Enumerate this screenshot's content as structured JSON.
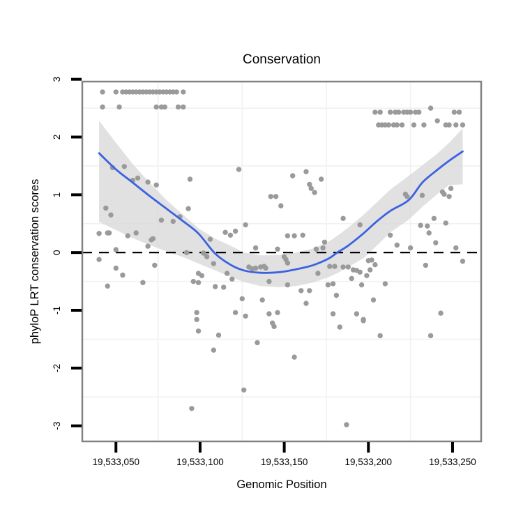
{
  "title": "Conservation",
  "axes": {
    "x_label": "Genomic Position",
    "y_label": "phyloP LRT conservation scores",
    "x_tick_labels": [
      "19,533,050",
      "19,533,100",
      "19,533,150",
      "19,533,200",
      "19,533,250"
    ],
    "y_tick_labels": [
      "3",
      "2",
      "1",
      "0",
      "-1",
      "-2",
      "-3"
    ]
  },
  "colors": {
    "background": "#ffffff",
    "point": "#9a9a9a",
    "smooth_line": "#3b62e0",
    "ribbon": "#d9d9d9",
    "zero_line": "#000000",
    "panel_border": "#828282",
    "tick": "#000000",
    "minor_grid": "#f1f1f1"
  },
  "chart_data": {
    "type": "scatter",
    "title": "Conservation",
    "xlabel": "Genomic Position",
    "ylabel": "phyloP LRT conservation scores",
    "xlim": [
      19533030,
      19533267
    ],
    "ylim": [
      -3.27,
      2.96
    ],
    "x_ticks": [
      19533050,
      19533100,
      19533150,
      19533200,
      19533250
    ],
    "y_ticks": [
      3,
      2,
      1,
      0,
      -1,
      -2,
      -3
    ],
    "minor_gridlines_x": [
      19533075,
      19533125,
      19533175,
      19533225
    ],
    "minor_gridlines_y": [
      2.5,
      1.5,
      0.5,
      -0.5,
      -1.5,
      -2.5
    ],
    "zero_line": 0,
    "legend": "none",
    "grid": "minor-only",
    "points": [
      [
        19533042,
        2.78
      ],
      [
        19533050,
        2.78
      ],
      [
        19533054,
        2.78
      ],
      [
        19533056,
        2.78
      ],
      [
        19533058,
        2.78
      ],
      [
        19533060,
        2.78
      ],
      [
        19533062,
        2.78
      ],
      [
        19533064,
        2.78
      ],
      [
        19533066,
        2.78
      ],
      [
        19533068,
        2.78
      ],
      [
        19533070,
        2.78
      ],
      [
        19533072,
        2.78
      ],
      [
        19533074,
        2.78
      ],
      [
        19533076,
        2.78
      ],
      [
        19533078,
        2.78
      ],
      [
        19533080,
        2.78
      ],
      [
        19533082,
        2.78
      ],
      [
        19533084,
        2.78
      ],
      [
        19533086,
        2.78
      ],
      [
        19533090,
        2.78
      ],
      [
        19533042,
        2.52
      ],
      [
        19533052,
        2.52
      ],
      [
        19533074,
        2.52
      ],
      [
        19533077,
        2.52
      ],
      [
        19533079,
        2.52
      ],
      [
        19533087,
        2.52
      ],
      [
        19533090,
        2.52
      ],
      [
        19533204,
        2.43
      ],
      [
        19533207,
        2.43
      ],
      [
        19533213,
        2.43
      ],
      [
        19533216,
        2.43
      ],
      [
        19533218,
        2.43
      ],
      [
        19533221,
        2.43
      ],
      [
        19533223,
        2.43
      ],
      [
        19533225,
        2.43
      ],
      [
        19533228,
        2.43
      ],
      [
        19533230,
        2.43
      ],
      [
        19533251,
        2.43
      ],
      [
        19533254,
        2.43
      ],
      [
        19533237,
        2.5
      ],
      [
        19533206,
        2.21
      ],
      [
        19533208,
        2.21
      ],
      [
        19533210,
        2.21
      ],
      [
        19533212,
        2.21
      ],
      [
        19533215,
        2.21
      ],
      [
        19533217,
        2.21
      ],
      [
        19533220,
        2.21
      ],
      [
        19533227,
        2.21
      ],
      [
        19533233,
        2.21
      ],
      [
        19533241,
        2.28
      ],
      [
        19533246,
        2.21
      ],
      [
        19533248,
        2.21
      ],
      [
        19533252,
        2.21
      ],
      [
        19533256,
        2.21
      ],
      [
        19533048,
        1.47
      ],
      [
        19533055,
        1.49
      ],
      [
        19533060,
        1.25
      ],
      [
        19533063,
        1.29
      ],
      [
        19533069,
        1.22
      ],
      [
        19533074,
        1.17
      ],
      [
        19533094,
        1.27
      ],
      [
        19533123,
        1.44
      ],
      [
        19533155,
        1.33
      ],
      [
        19533163,
        1.4
      ],
      [
        19533172,
        1.27
      ],
      [
        19533165,
        1.18
      ],
      [
        19533166,
        1.11
      ],
      [
        19533168,
        1.04
      ],
      [
        19533142,
        0.97
      ],
      [
        19533145,
        0.97
      ],
      [
        19533148,
        0.81
      ],
      [
        19533222,
        1.01
      ],
      [
        19533223,
        0.97
      ],
      [
        19533232,
        0.99
      ],
      [
        19533244,
        1.05
      ],
      [
        19533245,
        1.01
      ],
      [
        19533249,
        1.11
      ],
      [
        19533248,
        0.97
      ],
      [
        19533044,
        0.77
      ],
      [
        19533047,
        0.65
      ],
      [
        19533077,
        0.56
      ],
      [
        19533084,
        0.54
      ],
      [
        19533088,
        0.62
      ],
      [
        19533093,
        0.76
      ],
      [
        19533040,
        0.33
      ],
      [
        19533045,
        0.34
      ],
      [
        19533046,
        0.34
      ],
      [
        19533057,
        0.29
      ],
      [
        19533062,
        0.34
      ],
      [
        19533069,
        0.11
      ],
      [
        19533071,
        0.22
      ],
      [
        19533072,
        0.24
      ],
      [
        19533050,
        0.05
      ],
      [
        19533040,
        -0.12
      ],
      [
        19533050,
        -0.27
      ],
      [
        19533054,
        -0.39
      ],
      [
        19533045,
        -0.58
      ],
      [
        19533066,
        -0.52
      ],
      [
        19533073,
        -0.22
      ],
      [
        19533092,
        0.0
      ],
      [
        19533102,
        -0.01
      ],
      [
        19533104,
        -0.07
      ],
      [
        19533099,
        -0.36
      ],
      [
        19533101,
        -0.4
      ],
      [
        19533096,
        -0.5
      ],
      [
        19533099,
        -0.52
      ],
      [
        19533106,
        0.23
      ],
      [
        19533108,
        -0.19
      ],
      [
        19533115,
        0.35
      ],
      [
        19533118,
        0.3
      ],
      [
        19533121,
        0.37
      ],
      [
        19533127,
        0.48
      ],
      [
        19533133,
        0.08
      ],
      [
        19533152,
        0.29
      ],
      [
        19533156,
        0.29
      ],
      [
        19533161,
        0.3
      ],
      [
        19533146,
        0.06
      ],
      [
        19533150,
        -0.07
      ],
      [
        19533151,
        -0.12
      ],
      [
        19533152,
        -0.18
      ],
      [
        19533129,
        -0.25
      ],
      [
        19533131,
        -0.28
      ],
      [
        19533133,
        -0.27
      ],
      [
        19533136,
        -0.25
      ],
      [
        19533138,
        -0.24
      ],
      [
        19533139,
        -0.27
      ],
      [
        19533116,
        -0.36
      ],
      [
        19533119,
        -0.46
      ],
      [
        19533109,
        -0.59
      ],
      [
        19533114,
        -0.6
      ],
      [
        19533125,
        -0.8
      ],
      [
        19533137,
        -0.82
      ],
      [
        19533141,
        -0.5
      ],
      [
        19533152,
        -0.56
      ],
      [
        19533160,
        -0.66
      ],
      [
        19533165,
        -0.66
      ],
      [
        19533163,
        -0.88
      ],
      [
        19533169,
        0.06
      ],
      [
        19533173,
        0.08
      ],
      [
        19533174,
        0.18
      ],
      [
        19533170,
        -0.36
      ],
      [
        19533176,
        -0.56
      ],
      [
        19533179,
        -0.54
      ],
      [
        19533177,
        -0.24
      ],
      [
        19533180,
        -0.24
      ],
      [
        19533185,
        0.59
      ],
      [
        19533185,
        -0.25
      ],
      [
        19533181,
        -0.74
      ],
      [
        19533121,
        -1.04
      ],
      [
        19533127,
        -1.1
      ],
      [
        19533141,
        -1.06
      ],
      [
        19533146,
        -1.04
      ],
      [
        19533179,
        -1.06
      ],
      [
        19533143,
        -1.22
      ],
      [
        19533098,
        -1.04
      ],
      [
        19533098,
        -1.16
      ],
      [
        19533099,
        -1.36
      ],
      [
        19533108,
        -1.69
      ],
      [
        19533095,
        -2.7
      ],
      [
        19533111,
        -1.43
      ],
      [
        19533134,
        -1.56
      ],
      [
        19533156,
        -1.81
      ],
      [
        19533126,
        -2.38
      ],
      [
        19533187,
        -2.98
      ],
      [
        19533144,
        -1.28
      ],
      [
        19533183,
        -1.29
      ],
      [
        19533197,
        -1.18
      ],
      [
        19533207,
        -1.44
      ],
      [
        19533237,
        -1.44
      ],
      [
        19533195,
        0.48
      ],
      [
        19533213,
        0.3
      ],
      [
        19533217,
        0.13
      ],
      [
        19533225,
        0.08
      ],
      [
        19533231,
        0.47
      ],
      [
        19533235,
        0.46
      ],
      [
        19533236,
        0.34
      ],
      [
        19533239,
        0.59
      ],
      [
        19533246,
        0.51
      ],
      [
        19533240,
        0.17
      ],
      [
        19533234,
        -0.22
      ],
      [
        19533252,
        0.08
      ],
      [
        19533256,
        -0.15
      ],
      [
        19533200,
        -0.14
      ],
      [
        19533202,
        -0.13
      ],
      [
        19533204,
        -0.21
      ],
      [
        19533188,
        -0.25
      ],
      [
        19533191,
        -0.3
      ],
      [
        19533193,
        -0.31
      ],
      [
        19533195,
        -0.34
      ],
      [
        19533190,
        -0.45
      ],
      [
        19533201,
        -0.3
      ],
      [
        19533199,
        -0.4
      ],
      [
        19533196,
        -0.56
      ],
      [
        19533210,
        -0.54
      ],
      [
        19533203,
        -0.82
      ],
      [
        19533193,
        -1.06
      ],
      [
        19533197,
        -1.16
      ],
      [
        19533243,
        -1.05
      ]
    ],
    "smooth": {
      "position": [
        19533040,
        19533050,
        19533060,
        19533070,
        19533080,
        19533090,
        19533099,
        19533109,
        19533118,
        19533126,
        19533136,
        19533147,
        19533157,
        19533167,
        19533176,
        19533182,
        19533188,
        19533197,
        19533205,
        19533213,
        19533224,
        19533232,
        19533240,
        19533248,
        19533256
      ],
      "fit": [
        1.72,
        1.44,
        1.21,
        0.98,
        0.76,
        0.54,
        0.33,
        -0.02,
        -0.21,
        -0.31,
        -0.35,
        -0.34,
        -0.29,
        -0.22,
        -0.11,
        0.01,
        0.12,
        0.33,
        0.54,
        0.72,
        0.91,
        1.21,
        1.41,
        1.59,
        1.75
      ],
      "upper": [
        2.28,
        1.9,
        1.53,
        1.21,
        0.91,
        0.65,
        0.42,
        0.24,
        0.12,
        0.0,
        -0.05,
        -0.04,
        0.0,
        0.07,
        0.18,
        0.3,
        0.43,
        0.65,
        0.87,
        1.09,
        1.33,
        1.51,
        1.69,
        1.9,
        2.15
      ],
      "lower": [
        0.53,
        0.39,
        0.25,
        0.13,
        0.02,
        -0.08,
        -0.19,
        -0.31,
        -0.42,
        -0.51,
        -0.58,
        -0.6,
        -0.58,
        -0.52,
        -0.43,
        -0.35,
        -0.25,
        -0.1,
        0.12,
        0.35,
        0.57,
        0.79,
        0.99,
        1.17,
        1.18
      ]
    }
  }
}
